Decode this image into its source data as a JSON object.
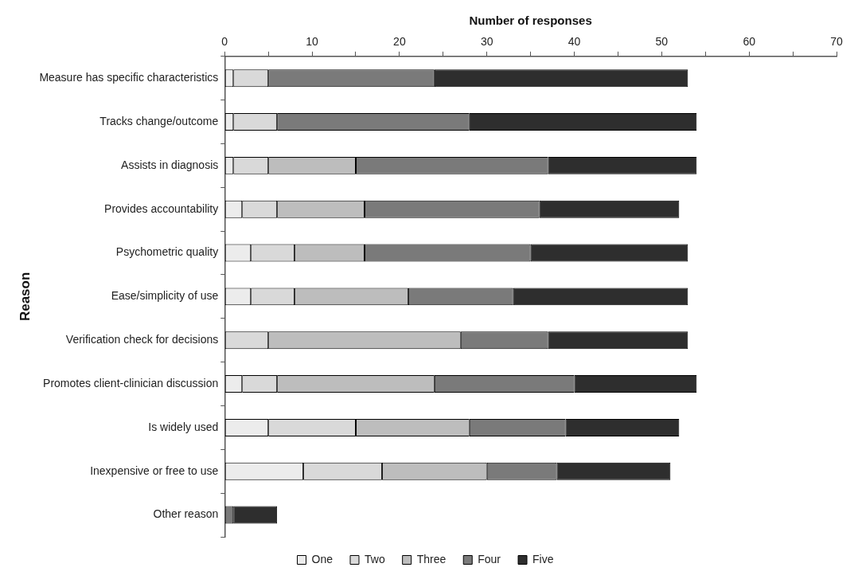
{
  "chart_data": {
    "type": "bar",
    "orientation": "horizontal",
    "stacked": true,
    "xlabel": "Number of responses",
    "ylabel": "Reason",
    "categories": [
      "Measure has specific characteristics",
      "Tracks change/outcome",
      "Assists in diagnosis",
      "Provides accountability",
      "Psychometric quality",
      "Ease/simplicity of use",
      "Verification check for decisions",
      "Promotes client-clinician discussion",
      "Is widely used",
      "Inexpensive or free to use",
      "Other reason"
    ],
    "series": [
      {
        "name": "One",
        "color": "#ececec",
        "values": [
          1,
          1,
          1,
          2,
          3,
          3,
          0,
          2,
          5,
          9,
          0
        ]
      },
      {
        "name": "Two",
        "color": "#d9d9d9",
        "values": [
          4,
          5,
          4,
          4,
          5,
          5,
          5,
          4,
          10,
          9,
          0
        ]
      },
      {
        "name": "Three",
        "color": "#bdbdbd",
        "values": [
          0,
          0,
          10,
          10,
          8,
          13,
          22,
          18,
          13,
          12,
          0
        ]
      },
      {
        "name": "Four",
        "color": "#7a7a7a",
        "values": [
          19,
          22,
          22,
          20,
          19,
          12,
          10,
          16,
          11,
          8,
          1
        ]
      },
      {
        "name": "Five",
        "color": "#2e2e2e",
        "values": [
          29,
          26,
          17,
          16,
          18,
          20,
          16,
          14,
          13,
          13,
          5
        ]
      }
    ],
    "xlim": [
      0,
      70
    ],
    "xticks": [
      0,
      {
        "value": 5,
        "label": null
      },
      10,
      {
        "value": 15,
        "label": null
      },
      20,
      {
        "value": 25,
        "label": null
      },
      30,
      {
        "value": 35,
        "label": null
      },
      40,
      {
        "value": 45,
        "label": null
      },
      50,
      {
        "value": 55,
        "label": null
      },
      60,
      {
        "value": 65,
        "label": null
      },
      70
    ],
    "grid": false,
    "legend": "bottom"
  }
}
